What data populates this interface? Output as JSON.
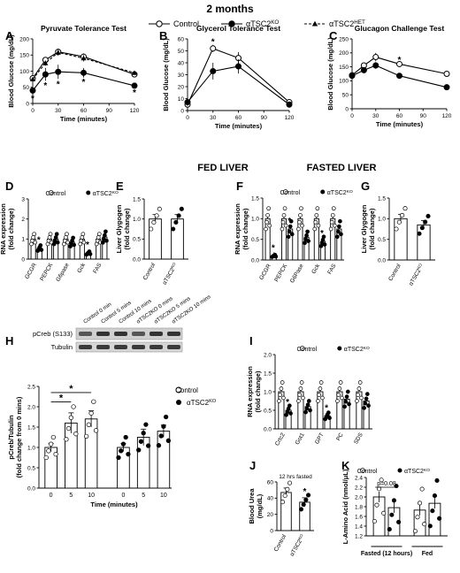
{
  "header": "2 months",
  "legend_top": {
    "entries": [
      {
        "label": "Control",
        "sup": "",
        "marker": "open-circle",
        "line": "solid"
      },
      {
        "label": "αTSC2",
        "sup": "KO",
        "marker": "filled-circle",
        "line": "solid"
      },
      {
        "label": "αTSC2",
        "sup": "HET",
        "marker": "filled-triangle",
        "line": "dashed"
      }
    ]
  },
  "colors": {
    "ink": "#000000",
    "hetLine": "#222222",
    "openFill": "#ffffff"
  },
  "section_titles": {
    "fed": "FED LIVER",
    "fasted": "FASTED LIVER"
  },
  "chart_data": [
    {
      "id": "A",
      "type": "line",
      "title": "Pyruvate Tolerance Test",
      "xlabel": "Time (minutes)",
      "ylabel": "Blood Glucose (mg/dL)",
      "xlim": [
        0,
        120
      ],
      "ylim": [
        0,
        200
      ],
      "xticks": [
        0,
        30,
        60,
        90,
        120
      ],
      "yticks": [
        0,
        50,
        100,
        150,
        200
      ],
      "x": [
        0,
        15,
        30,
        60,
        120
      ],
      "series": [
        {
          "name": "Control",
          "marker": "open-circle",
          "values": [
            78,
            135,
            160,
            145,
            90
          ],
          "err": [
            5,
            8,
            10,
            10,
            6
          ]
        },
        {
          "name": "αTSC2KO",
          "marker": "filled-circle",
          "values": [
            40,
            90,
            98,
            95,
            55
          ],
          "err": [
            6,
            20,
            22,
            15,
            8
          ]
        },
        {
          "name": "αTSC2HET",
          "marker": "filled-triangle",
          "values": [
            75,
            125,
            158,
            140,
            95
          ],
          "err": [
            5,
            8,
            10,
            10,
            6
          ]
        }
      ],
      "annotations": [
        {
          "text": "*",
          "x": 0,
          "y": 18
        },
        {
          "text": "*",
          "x": 15,
          "y": 58
        },
        {
          "text": "*",
          "x": 30,
          "y": 62
        },
        {
          "text": "*",
          "x": 60,
          "y": 68
        },
        {
          "text": "*",
          "x": 120,
          "y": 36
        }
      ]
    },
    {
      "id": "B",
      "type": "line",
      "title": "Glycerol Tolerance Test",
      "xlabel": "Time (minutes)",
      "ylabel": "Blood Glucose (mg/dL)",
      "xlim": [
        0,
        120
      ],
      "ylim": [
        0,
        60
      ],
      "xticks": [
        0,
        30,
        60,
        90,
        120
      ],
      "yticks": [
        0,
        10,
        20,
        30,
        40,
        50,
        60
      ],
      "x": [
        0,
        30,
        60,
        120
      ],
      "series": [
        {
          "name": "Control",
          "marker": "open-circle",
          "values": [
            5,
            52,
            44,
            7
          ],
          "err": [
            2,
            3,
            5,
            2
          ]
        },
        {
          "name": "αTSC2KO",
          "marker": "filled-circle",
          "values": [
            7,
            33,
            37,
            5
          ],
          "err": [
            3,
            7,
            6,
            2
          ]
        }
      ],
      "annotations": [
        {
          "text": "*",
          "x": 30,
          "y": 58
        }
      ]
    },
    {
      "id": "C",
      "type": "line",
      "title": "Glucagon Challenge Test",
      "xlabel": "Time (minutes)",
      "ylabel": "Blood Glucose (mg/dL)",
      "xlim": [
        0,
        120
      ],
      "ylim": [
        0,
        250
      ],
      "xticks": [
        0,
        30,
        60,
        90,
        120
      ],
      "yticks": [
        0,
        50,
        100,
        150,
        200,
        250
      ],
      "x": [
        0,
        15,
        30,
        60,
        120
      ],
      "series": [
        {
          "name": "Control",
          "marker": "open-circle",
          "values": [
            120,
            155,
            185,
            160,
            125
          ],
          "err": [
            8,
            10,
            15,
            10,
            8
          ]
        },
        {
          "name": "αTSC2KO",
          "marker": "filled-circle",
          "values": [
            118,
            138,
            155,
            118,
            77
          ],
          "err": [
            8,
            10,
            12,
            8,
            6
          ]
        }
      ],
      "annotations": [
        {
          "text": "*",
          "x": 60,
          "y": 178
        }
      ]
    },
    {
      "id": "D",
      "type": "bar",
      "title": "",
      "xlabel": "",
      "ylabel": "RNA expression (fold change)",
      "ylim": [
        0,
        3
      ],
      "yticks": [
        0,
        1,
        2,
        3
      ],
      "categories": [
        "GCGR",
        "PEPCK",
        "G6pase",
        "Gck",
        "FAS"
      ],
      "series": [
        {
          "name": "Control",
          "values": [
            1.0,
            1.0,
            1.0,
            1.0,
            1.0
          ]
        },
        {
          "name": "αTSC2KO",
          "values": [
            0.55,
            1.0,
            0.85,
            0.3,
            1.1
          ]
        }
      ],
      "legend": [
        "Control",
        "αTSC2KO"
      ],
      "annotations": [
        {
          "text": "*",
          "category": "GCGR"
        },
        {
          "text": "*",
          "category": "Gck"
        }
      ]
    },
    {
      "id": "E",
      "type": "bar",
      "title": "",
      "xlabel": "",
      "ylabel": "Liver Glygogen (fold change)",
      "ylim": [
        0,
        1.5
      ],
      "yticks": [
        0.0,
        0.5,
        1.0,
        1.5
      ],
      "categories": [
        "Control",
        "αTSC2KO"
      ],
      "values": [
        1.0,
        1.0
      ]
    },
    {
      "id": "F",
      "type": "bar",
      "title": "",
      "xlabel": "",
      "ylabel": "RNA expression (fold change)",
      "ylim": [
        0,
        1.5
      ],
      "yticks": [
        0.0,
        0.5,
        1.0,
        1.5
      ],
      "categories": [
        "GCGR",
        "PEPCK",
        "G6Pase",
        "Gck",
        "FAS"
      ],
      "series": [
        {
          "name": "Control",
          "values": [
            1.0,
            1.0,
            1.0,
            1.0,
            1.0
          ]
        },
        {
          "name": "αTSC2KO",
          "values": [
            0.1,
            0.75,
            0.55,
            0.45,
            0.75
          ]
        }
      ],
      "legend": [
        "Control",
        "αTSC2KO"
      ],
      "annotations": [
        {
          "text": "*",
          "category": "GCGR"
        },
        {
          "text": "*",
          "category": "PEPCK"
        },
        {
          "text": "*",
          "category": "Gck"
        }
      ]
    },
    {
      "id": "G",
      "type": "bar",
      "title": "",
      "xlabel": "",
      "ylabel": "Liver Glygogen (fold change)",
      "ylim": [
        0,
        1.5
      ],
      "yticks": [
        0.0,
        0.5,
        1.0,
        1.5
      ],
      "categories": [
        "Control",
        "αTSC2KO"
      ],
      "values": [
        1.0,
        0.85
      ]
    },
    {
      "id": "H",
      "type": "bar",
      "title": "",
      "xlabel": "Time (minutes)",
      "ylabel": "pCreb/Tubulin (fold change from 0 mins)",
      "ylim": [
        0,
        2.5
      ],
      "yticks": [
        0.0,
        0.5,
        1.0,
        1.5,
        2.0,
        2.5
      ],
      "categories": [
        "0",
        "5",
        "10",
        "0",
        "5",
        "10"
      ],
      "groups": [
        "Control",
        "Control",
        "Control",
        "αTSC2KO",
        "αTSC2KO",
        "αTSC2KO"
      ],
      "values": [
        1.0,
        1.6,
        1.7,
        1.0,
        1.25,
        1.4
      ],
      "err": [
        0.1,
        0.25,
        0.2,
        0.1,
        0.2,
        0.15
      ],
      "legend": [
        "Control",
        "αTSC2KO"
      ],
      "annotations": [
        {
          "text": "*",
          "from": 0,
          "to": 1
        },
        {
          "text": "*",
          "from": 0,
          "to": 2
        }
      ]
    },
    {
      "id": "I",
      "type": "bar",
      "title": "",
      "xlabel": "",
      "ylabel": "RNA expression (fold change)",
      "ylim": [
        0,
        2.0
      ],
      "yticks": [
        0.0,
        0.5,
        1.0,
        1.5,
        2.0
      ],
      "categories": [
        "Crtc2",
        "Got1",
        "GPT",
        "PC",
        "SDS"
      ],
      "series": [
        {
          "name": "Control",
          "values": [
            1.0,
            1.0,
            1.0,
            1.0,
            1.0
          ]
        },
        {
          "name": "αTSC2KO",
          "values": [
            0.5,
            0.6,
            0.35,
            0.8,
            0.75
          ]
        }
      ],
      "legend": [
        "Control",
        "αTSC2KO"
      ],
      "annotations": [
        {
          "text": "*",
          "category": "Crtc2"
        },
        {
          "text": "*",
          "category": "GPT"
        }
      ]
    },
    {
      "id": "J",
      "type": "bar",
      "title": "12 hrs fasted",
      "xlabel": "",
      "ylabel": "Blood Urea (mg/dL)",
      "ylim": [
        0,
        60
      ],
      "yticks": [
        0,
        20,
        40,
        60
      ],
      "categories": [
        "Control",
        "αTSC2KO"
      ],
      "values": [
        47,
        35
      ],
      "annotations": [
        {
          "text": "*",
          "category": "αTSC2KO"
        }
      ]
    },
    {
      "id": "K",
      "type": "bar",
      "title": "",
      "xlabel": "",
      "ylabel": "L-Amino Acid (nmol/μL)",
      "ylim": [
        1.2,
        2.4
      ],
      "yticks": [
        1.2,
        1.4,
        1.6,
        1.8,
        2.0,
        2.2,
        2.4
      ],
      "groups": [
        "Fasted (12 hours)",
        "Fed"
      ],
      "series": [
        {
          "name": "Control",
          "values": [
            2.0,
            1.73
          ]
        },
        {
          "name": "αTSC2KO",
          "values": [
            1.78,
            1.87
          ]
        }
      ],
      "legend": [
        "Control",
        "αTSC2KO"
      ],
      "annotations": [
        {
          "text": "p=0.08",
          "group": "Fasted (12 hours)"
        }
      ]
    }
  ],
  "blot": {
    "lane_labels": [
      "Control 0 min",
      "Control 5 mins",
      "Control 10 mins",
      "αTSC2KO 0 mins",
      "αTSC2KO 5 mins",
      "αTSC2KO 10 mins"
    ],
    "rows": [
      "pCreb (S133)",
      "Tubulin"
    ]
  }
}
